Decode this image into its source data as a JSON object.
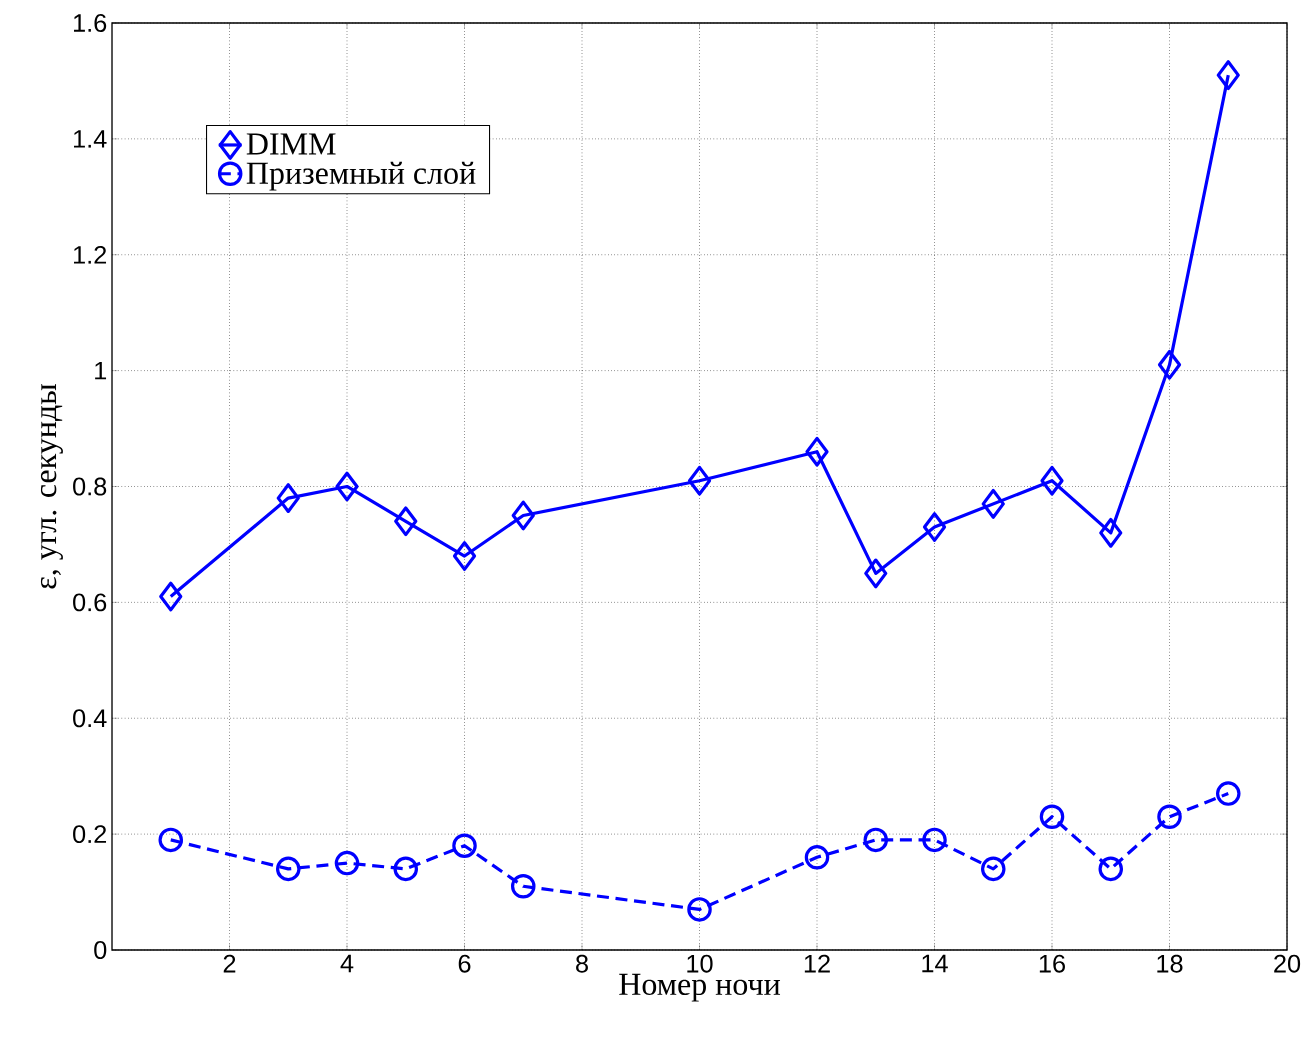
{
  "chart_data": {
    "type": "line",
    "xlabel": "Номер ночи",
    "ylabel": "ε, угл. секунды",
    "xlim": [
      0,
      20
    ],
    "xticks": [
      2,
      4,
      6,
      8,
      10,
      12,
      14,
      16,
      18,
      20
    ],
    "ylim": [
      0,
      1.6
    ],
    "yticks": [
      0,
      0.2,
      0.4,
      0.6,
      0.8,
      1,
      1.2,
      1.4,
      1.6
    ],
    "grid": true,
    "legend": "top left",
    "x": [
      1,
      3,
      4,
      5,
      6,
      7,
      10,
      12,
      13,
      14,
      15,
      16,
      17,
      18,
      19
    ],
    "series": [
      {
        "name": "DIMM",
        "color": "#0000ff",
        "marker": "diamond",
        "line_style": "solid",
        "values": [
          0.61,
          0.78,
          0.8,
          0.74,
          0.68,
          0.75,
          0.81,
          0.86,
          0.65,
          0.73,
          0.77,
          0.81,
          0.72,
          1.01,
          1.51
        ]
      },
      {
        "name": "Приземный слой",
        "color": "#0000ff",
        "marker": "circle",
        "line_style": "dashed",
        "values": [
          0.19,
          0.14,
          0.15,
          0.14,
          0.18,
          0.11,
          0.07,
          0.16,
          0.19,
          0.19,
          0.14,
          0.23,
          0.14,
          0.23,
          0.27
        ]
      }
    ]
  }
}
